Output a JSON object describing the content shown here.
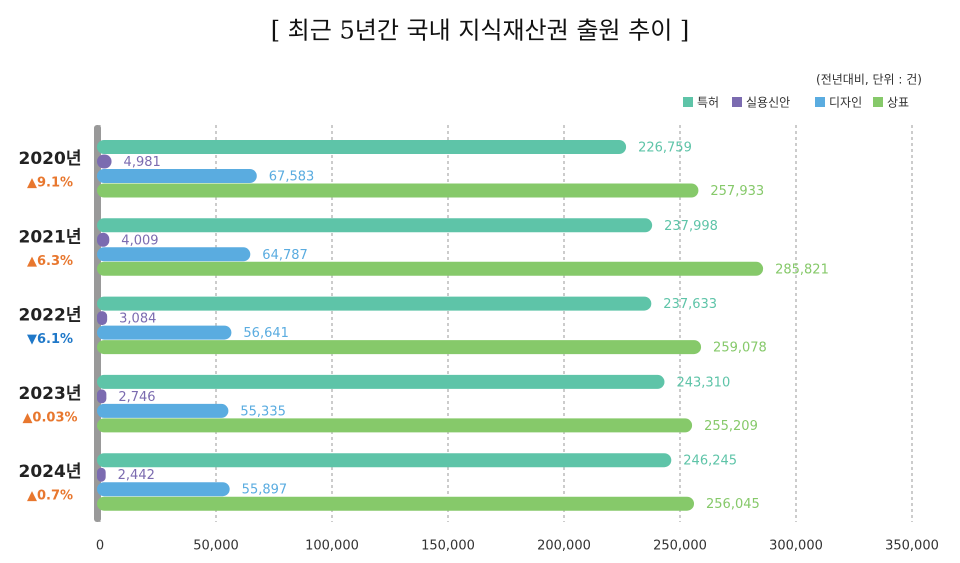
{
  "chart_data": {
    "type": "hbar",
    "title": "[ 최근 5년간 국내 지식재산권 출원 추이 ]",
    "subtitle": "(전년대비, 단위 : 건)",
    "categories": [
      "2020년",
      "2021년",
      "2022년",
      "2023년",
      "2024년"
    ],
    "category_notes": [
      {
        "text": "▲9.1%",
        "color": "#e8772e"
      },
      {
        "text": "▲6.3%",
        "color": "#e8772e"
      },
      {
        "text": "▼6.1%",
        "color": "#1f78c8"
      },
      {
        "text": "▲0.03%",
        "color": "#e8772e"
      },
      {
        "text": "▲0.7%",
        "color": "#e8772e"
      }
    ],
    "series": [
      {
        "name": "특허",
        "color": "#5ec4a8",
        "values": [
          226759,
          237998,
          237633,
          243310,
          246245
        ],
        "value_labels": [
          "226,759",
          "237,998",
          "237,633",
          "243,310",
          "246,245"
        ]
      },
      {
        "name": "실용신안",
        "color": "#7b6bb0",
        "values": [
          4981,
          4009,
          3084,
          2746,
          2442
        ],
        "value_labels": [
          "4,981",
          "4,009",
          "3,084",
          "2,746",
          "2,442"
        ]
      },
      {
        "name": "디자인",
        "color": "#5aace0",
        "values": [
          67583,
          64787,
          56641,
          55335,
          55897
        ],
        "value_labels": [
          "67,583",
          "64,787",
          "56,641",
          "55,335",
          "55,897"
        ]
      },
      {
        "name": "상표",
        "color": "#86c96a",
        "values": [
          257933,
          285821,
          259078,
          255209,
          256045
        ],
        "value_labels": [
          "257,933",
          "285,821",
          "259,078",
          "255,209",
          "256,045"
        ]
      }
    ],
    "xlim": [
      0,
      350000
    ],
    "xticks": [
      0,
      {
        "value": 50000,
        "label": "50,000"
      },
      {
        "value": 100000,
        "label": "100,000"
      },
      {
        "value": 150000,
        "label": "150,000"
      },
      {
        "value": 200000,
        "label": "200,000"
      },
      {
        "value": 250000,
        "label": "250,000"
      },
      {
        "value": 300000,
        "label": "300,000"
      },
      {
        "value": 350000,
        "label": "350,000"
      }
    ],
    "grid": true
  }
}
